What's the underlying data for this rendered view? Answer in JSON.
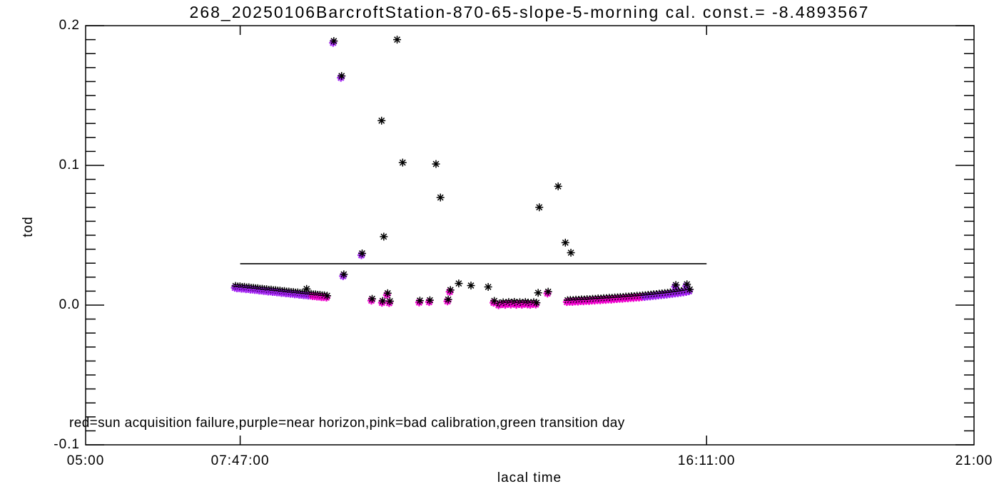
{
  "title": "268_20250106BarcroftStation-870-65-slope-5-morning cal. const.= -8.4893567",
  "annotation": "red=sun acquisition failure,purple=near horizon,pink=bad calibration,green transition day",
  "axes": {
    "xlabel": "lacal time",
    "ylabel": "tod",
    "xlim_hours": [
      5,
      21
    ],
    "ylim": [
      -0.1,
      0.2
    ],
    "y_minor_step": 0.01,
    "x_ticks": [
      {
        "h": 5.0,
        "label": "05:00",
        "major": false
      },
      {
        "h": 7.783333,
        "label": "07:47:00",
        "major": true
      },
      {
        "h": 16.183333,
        "label": "16:11:00",
        "major": true
      },
      {
        "h": 21.0,
        "label": "21:00",
        "major": false
      }
    ],
    "y_ticks": [
      {
        "v": 0.2,
        "label": "0.2"
      },
      {
        "v": 0.1,
        "label": "0.1"
      },
      {
        "v": 0.0,
        "label": "0.0"
      },
      {
        "v": -0.1,
        "label": "-0.1"
      }
    ]
  },
  "colors": {
    "black": "#000000",
    "purple": "#A020F0",
    "pink": "#EE00CC"
  },
  "chart_data": {
    "type": "scatter",
    "title": "268_20250106BarcroftStation-870-65-slope-5-morning cal. const.= -8.4893567",
    "xlabel": "lacal time",
    "ylabel": "tod",
    "xlim_hours": [
      5,
      21
    ],
    "ylim": [
      -0.1,
      0.2
    ],
    "grid": false,
    "marker": "asterisk",
    "cal_line": {
      "t_start": 7.783333,
      "t_end": 16.183333,
      "tod": 0.0296
    },
    "point_format": "[time_hours, tod, color_code] ; k=black, p=purple, m=pink, pk=purple under black, mk=pink under black",
    "points": [
      [
        7.7,
        0.0137,
        "pk"
      ],
      [
        7.74,
        0.0133,
        "pk"
      ],
      [
        7.78,
        0.0134,
        "pk"
      ],
      [
        7.82,
        0.013,
        "pk"
      ],
      [
        7.86,
        0.0131,
        "pk"
      ],
      [
        7.9,
        0.0127,
        "pk"
      ],
      [
        7.94,
        0.0128,
        "pk"
      ],
      [
        7.98,
        0.0124,
        "pk"
      ],
      [
        8.02,
        0.0124,
        "pk"
      ],
      [
        8.06,
        0.0121,
        "pk"
      ],
      [
        8.1,
        0.0121,
        "pk"
      ],
      [
        8.14,
        0.0117,
        "pk"
      ],
      [
        8.18,
        0.0117,
        "pk"
      ],
      [
        8.22,
        0.0114,
        "pk"
      ],
      [
        8.26,
        0.0114,
        "pk"
      ],
      [
        8.3,
        0.011,
        "pk"
      ],
      [
        8.34,
        0.0111,
        "pk"
      ],
      [
        8.38,
        0.0107,
        "pk"
      ],
      [
        8.42,
        0.0107,
        "pk"
      ],
      [
        8.46,
        0.0104,
        "pk"
      ],
      [
        8.5,
        0.0104,
        "pk"
      ],
      [
        8.54,
        0.01,
        "pk"
      ],
      [
        8.58,
        0.0101,
        "pk"
      ],
      [
        8.62,
        0.0097,
        "pk"
      ],
      [
        8.66,
        0.0097,
        "pk"
      ],
      [
        8.7,
        0.0094,
        "pk"
      ],
      [
        8.74,
        0.0094,
        "pk"
      ],
      [
        8.78,
        0.009,
        "pk"
      ],
      [
        8.82,
        0.0091,
        "pk"
      ],
      [
        8.86,
        0.0087,
        "pk"
      ],
      [
        8.9,
        0.0087,
        "pk"
      ],
      [
        8.94,
        0.0084,
        "pk"
      ],
      [
        8.98,
        0.0116,
        "k"
      ],
      [
        8.98,
        0.0084,
        "pk"
      ],
      [
        9.02,
        0.0081,
        "pk"
      ],
      [
        9.06,
        0.0081,
        "pk"
      ],
      [
        9.1,
        0.0077,
        "mk"
      ],
      [
        9.14,
        0.0077,
        "mk"
      ],
      [
        9.18,
        0.0074,
        "mk"
      ],
      [
        9.22,
        0.0074,
        "mk"
      ],
      [
        9.26,
        0.007,
        "mk"
      ],
      [
        9.3,
        0.007,
        "mk"
      ],
      [
        9.35,
        0.0067,
        "mk"
      ],
      [
        9.47,
        0.189,
        "pk"
      ],
      [
        9.61,
        0.164,
        "pk"
      ],
      [
        9.65,
        0.022,
        "pk"
      ],
      [
        9.98,
        0.037,
        "pk"
      ],
      [
        10.33,
        0.132,
        "k"
      ],
      [
        10.37,
        0.049,
        "k"
      ],
      [
        10.61,
        0.19,
        "k"
      ],
      [
        10.71,
        0.102,
        "k"
      ],
      [
        11.31,
        0.101,
        "k"
      ],
      [
        11.39,
        0.077,
        "k"
      ],
      [
        13.17,
        0.07,
        "k"
      ],
      [
        13.51,
        0.085,
        "k"
      ],
      [
        13.64,
        0.0447,
        "k"
      ],
      [
        13.74,
        0.0375,
        "k"
      ],
      [
        10.16,
        0.0045,
        "mk"
      ],
      [
        10.35,
        0.003,
        "mk"
      ],
      [
        10.44,
        0.0085,
        "mk"
      ],
      [
        10.48,
        0.0028,
        "mk"
      ],
      [
        11.02,
        0.0032,
        "mk"
      ],
      [
        11.2,
        0.0035,
        "mk"
      ],
      [
        11.53,
        0.004,
        "mk"
      ],
      [
        11.57,
        0.0108,
        "mk"
      ],
      [
        11.72,
        0.0155,
        "k"
      ],
      [
        11.94,
        0.014,
        "k"
      ],
      [
        12.25,
        0.013,
        "k"
      ],
      [
        12.36,
        0.003,
        "mk"
      ],
      [
        12.45,
        0.0012,
        "mk"
      ],
      [
        12.52,
        0.002,
        "mk"
      ],
      [
        12.57,
        0.0015,
        "mk"
      ],
      [
        12.62,
        0.0022,
        "mk"
      ],
      [
        12.67,
        0.0017,
        "mk"
      ],
      [
        12.72,
        0.0023,
        "mk"
      ],
      [
        12.77,
        0.0015,
        "mk"
      ],
      [
        12.82,
        0.0021,
        "mk"
      ],
      [
        12.87,
        0.0016,
        "mk"
      ],
      [
        12.92,
        0.0022,
        "mk"
      ],
      [
        12.97,
        0.0018,
        "mk"
      ],
      [
        13.02,
        0.0015,
        "mk"
      ],
      [
        13.07,
        0.0021,
        "mk"
      ],
      [
        13.12,
        0.0017,
        "mk"
      ],
      [
        13.15,
        0.0088,
        "k"
      ],
      [
        13.33,
        0.0096,
        "mk"
      ],
      [
        13.68,
        0.0035,
        "mk"
      ],
      [
        13.73,
        0.0037,
        "mk"
      ],
      [
        13.78,
        0.0036,
        "mk"
      ],
      [
        13.83,
        0.0039,
        "mk"
      ],
      [
        13.88,
        0.0038,
        "mk"
      ],
      [
        13.93,
        0.0041,
        "mk"
      ],
      [
        13.98,
        0.004,
        "mk"
      ],
      [
        14.03,
        0.0043,
        "mk"
      ],
      [
        14.08,
        0.0042,
        "mk"
      ],
      [
        14.13,
        0.0045,
        "mk"
      ],
      [
        14.18,
        0.0045,
        "mk"
      ],
      [
        14.23,
        0.0048,
        "mk"
      ],
      [
        14.28,
        0.0047,
        "mk"
      ],
      [
        14.33,
        0.005,
        "mk"
      ],
      [
        14.38,
        0.005,
        "mk"
      ],
      [
        14.43,
        0.0053,
        "mk"
      ],
      [
        14.48,
        0.0052,
        "mk"
      ],
      [
        14.53,
        0.0055,
        "mk"
      ],
      [
        14.58,
        0.0056,
        "mk"
      ],
      [
        14.63,
        0.0058,
        "mk"
      ],
      [
        14.68,
        0.0058,
        "mk"
      ],
      [
        14.73,
        0.0061,
        "mk"
      ],
      [
        14.78,
        0.0061,
        "mk"
      ],
      [
        14.83,
        0.0064,
        "mk"
      ],
      [
        14.88,
        0.0064,
        "mk"
      ],
      [
        14.93,
        0.0067,
        "mk"
      ],
      [
        14.98,
        0.0067,
        "mk"
      ],
      [
        15.03,
        0.007,
        "mk"
      ],
      [
        15.08,
        0.0071,
        "pk"
      ],
      [
        15.13,
        0.0074,
        "pk"
      ],
      [
        15.18,
        0.0075,
        "pk"
      ],
      [
        15.23,
        0.0078,
        "pk"
      ],
      [
        15.28,
        0.0079,
        "pk"
      ],
      [
        15.33,
        0.0082,
        "pk"
      ],
      [
        15.38,
        0.0084,
        "pk"
      ],
      [
        15.43,
        0.0086,
        "pk"
      ],
      [
        15.48,
        0.0088,
        "pk"
      ],
      [
        15.53,
        0.0091,
        "pk"
      ],
      [
        15.58,
        0.0093,
        "pk"
      ],
      [
        15.63,
        0.0144,
        "pk"
      ],
      [
        15.63,
        0.0096,
        "pk"
      ],
      [
        15.68,
        0.0098,
        "pk"
      ],
      [
        15.73,
        0.0101,
        "pk"
      ],
      [
        15.78,
        0.0104,
        "pk"
      ],
      [
        15.83,
        0.0149,
        "pk"
      ],
      [
        15.83,
        0.0107,
        "pk"
      ],
      [
        15.88,
        0.0112,
        "pk"
      ]
    ]
  }
}
